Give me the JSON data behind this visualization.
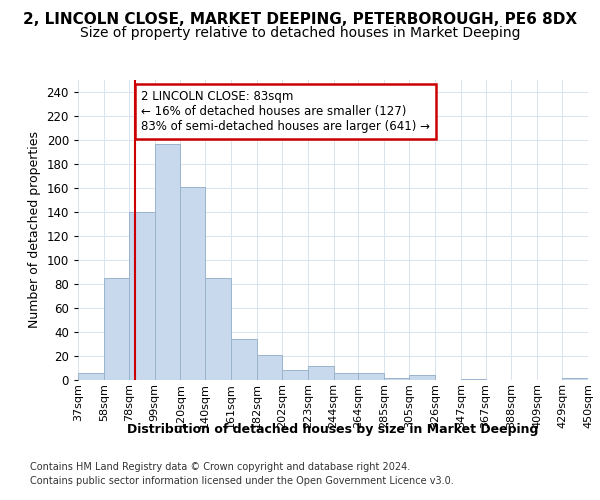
{
  "title1": "2, LINCOLN CLOSE, MARKET DEEPING, PETERBOROUGH, PE6 8DX",
  "title2": "Size of property relative to detached houses in Market Deeping",
  "xlabel": "Distribution of detached houses by size in Market Deeping",
  "ylabel": "Number of detached properties",
  "bin_edges": [
    37,
    58,
    78,
    99,
    120,
    140,
    161,
    182,
    202,
    223,
    244,
    264,
    285,
    305,
    326,
    347,
    367,
    388,
    409,
    429,
    450
  ],
  "bar_heights": [
    6,
    85,
    140,
    197,
    161,
    85,
    34,
    21,
    8,
    12,
    6,
    6,
    2,
    4,
    0,
    1,
    0,
    0,
    0,
    2
  ],
  "bar_color": "#c8d8ed",
  "bar_edge_color": "#9ab4cc",
  "grid_color": "#d8e4ef",
  "property_size": 83,
  "vline_color": "#cc0000",
  "annotation_text": "2 LINCOLN CLOSE: 83sqm\n← 16% of detached houses are smaller (127)\n83% of semi-detached houses are larger (641) →",
  "annotation_box_facecolor": "#ffffff",
  "annotation_box_edgecolor": "#cc0000",
  "ylim": [
    0,
    250
  ],
  "yticks": [
    0,
    20,
    40,
    60,
    80,
    100,
    120,
    140,
    160,
    180,
    200,
    220,
    240
  ],
  "footer1": "Contains HM Land Registry data © Crown copyright and database right 2024.",
  "footer2": "Contains public sector information licensed under the Open Government Licence v3.0.",
  "bg_color": "#ffffff",
  "title1_fontsize": 11,
  "title2_fontsize": 10
}
